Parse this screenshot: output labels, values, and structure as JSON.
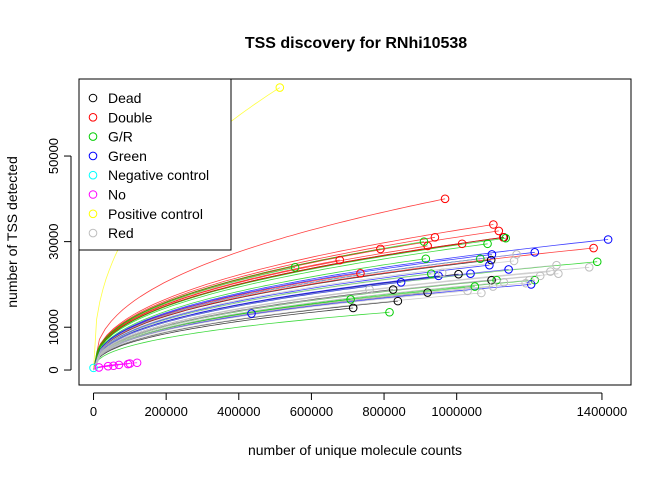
{
  "chart_data": {
    "type": "scatter",
    "title": "TSS discovery for RNhi10538",
    "xlabel": "number of unique molecule counts",
    "ylabel": "number of TSS detected",
    "xlim": [
      -40000,
      1480000
    ],
    "ylim": [
      -3500,
      68000
    ],
    "x_ticks": [
      0,
      200000,
      400000,
      600000,
      800000,
      1000000,
      1400000
    ],
    "x_tick_labels": [
      "0",
      "200000",
      "400000",
      "600000",
      "800000",
      "1000000",
      "1400000"
    ],
    "y_ticks": [
      0,
      10000,
      30000,
      50000
    ],
    "y_tick_labels": [
      "0",
      "10000",
      "30000",
      "50000"
    ],
    "legend_position": "top-left",
    "marker": "open-circle",
    "curves": "each sample is drawn as a fitted saturation curve from the origin to its point",
    "series": [
      {
        "name": "Dead",
        "color": "#000000",
        "points": [
          [
            715000,
            14500
          ],
          [
            825000,
            18800
          ],
          [
            838000,
            16100
          ],
          [
            920000,
            18100
          ],
          [
            1005000,
            22400
          ],
          [
            1095000,
            25700
          ],
          [
            1096000,
            21000
          ],
          [
            1130000,
            31000
          ]
        ]
      },
      {
        "name": "Double",
        "color": "#ff0000",
        "points": [
          [
            968000,
            40000
          ],
          [
            1101000,
            34000
          ],
          [
            1116000,
            32500
          ],
          [
            1128000,
            31000
          ],
          [
            1377000,
            28500
          ],
          [
            940000,
            31000
          ],
          [
            1015000,
            29500
          ],
          [
            920000,
            29000
          ],
          [
            790000,
            28300
          ],
          [
            678000,
            25700
          ],
          [
            735000,
            22600
          ]
        ]
      },
      {
        "name": "G/R",
        "color": "#00cd00",
        "points": [
          [
            555000,
            24000
          ],
          [
            910000,
            30000
          ],
          [
            915000,
            26000
          ],
          [
            1085000,
            29500
          ],
          [
            1065000,
            26000
          ],
          [
            930000,
            22500
          ],
          [
            1050000,
            19500
          ],
          [
            1110000,
            21000
          ],
          [
            1215000,
            21000
          ],
          [
            1387000,
            25300
          ],
          [
            708000,
            16500
          ],
          [
            815000,
            13500
          ],
          [
            1135000,
            30800
          ]
        ]
      },
      {
        "name": "Green",
        "color": "#0000ff",
        "points": [
          [
            435000,
            13200
          ],
          [
            847000,
            20500
          ],
          [
            950000,
            22000
          ],
          [
            1038000,
            22500
          ],
          [
            1090000,
            24500
          ],
          [
            1097000,
            27000
          ],
          [
            1143000,
            23500
          ],
          [
            1215000,
            27500
          ],
          [
            1205000,
            20000
          ],
          [
            1417000,
            30500
          ]
        ]
      },
      {
        "name": "Negative control",
        "color": "#00ffff",
        "points": [
          [
            0,
            500
          ]
        ]
      },
      {
        "name": "No",
        "color": "#ff00ff",
        "points": [
          [
            15000,
            600
          ],
          [
            40000,
            900
          ],
          [
            55000,
            1000
          ],
          [
            70000,
            1200
          ],
          [
            95000,
            1400
          ],
          [
            100000,
            1500
          ],
          [
            120000,
            1700
          ]
        ]
      },
      {
        "name": "Positive control",
        "color": "#ffff00",
        "points": [
          [
            513000,
            66000
          ]
        ]
      },
      {
        "name": "Red",
        "color": "#bebebe",
        "points": [
          [
            760000,
            18800
          ],
          [
            960000,
            22700
          ],
          [
            1030000,
            18500
          ],
          [
            1068000,
            18000
          ],
          [
            1100000,
            19500
          ],
          [
            1158000,
            25500
          ],
          [
            1165000,
            27000
          ],
          [
            1190000,
            20300
          ],
          [
            1200000,
            21000
          ],
          [
            1230000,
            22000
          ],
          [
            1258000,
            23000
          ],
          [
            1275000,
            24500
          ],
          [
            1365000,
            24000
          ],
          [
            1130000,
            20500
          ],
          [
            1280000,
            22500
          ]
        ]
      }
    ]
  }
}
